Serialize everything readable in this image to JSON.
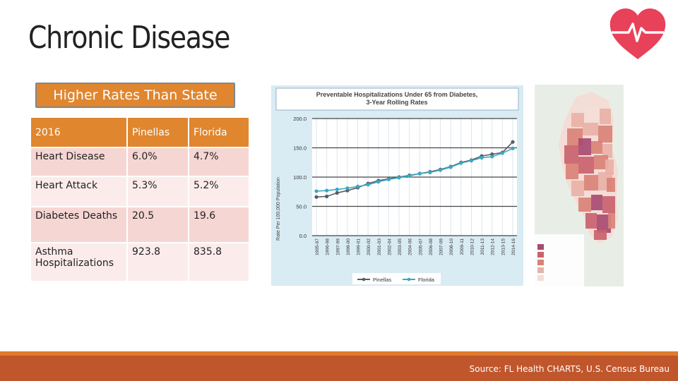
{
  "slide": {
    "title": "Chronic Disease",
    "subtitle_pill": "Higher Rates Than State",
    "source": "Source: FL Health CHARTS, U.S. Census Bureau"
  },
  "table": {
    "headers": [
      "2016",
      "Pinellas",
      "Florida"
    ],
    "rows": [
      [
        "Heart Disease",
        "6.0%",
        "4.7%"
      ],
      [
        "Heart Attack",
        "5.3%",
        "5.2%"
      ],
      [
        "Diabetes Deaths",
        "20.5",
        "19.6"
      ],
      [
        "Asthma Hospitalizations",
        "923.8",
        "835.8"
      ]
    ]
  },
  "chart_data": {
    "type": "line",
    "title": "Preventable Hospitalizations Under 65 from Diabetes, 3-Year Rolling Rates",
    "xlabel": "",
    "ylabel": "Rate Per 100,000 Population",
    "ylim": [
      0,
      200
    ],
    "yticks": [
      "0.0",
      "50.0",
      "100.0",
      "150.0",
      "200.0"
    ],
    "grid": true,
    "legend": "bottom",
    "categories": [
      "1995-97",
      "1996-98",
      "1997-99",
      "1998-00",
      "1999-01",
      "2000-02",
      "2001-03",
      "2002-04",
      "2003-05",
      "2004-06",
      "2005-07",
      "2006-08",
      "2007-09",
      "2008-10",
      "2009-11",
      "2010-12",
      "2011-13",
      "2012-14",
      "2013-15",
      "2014-16"
    ],
    "series": [
      {
        "name": "Pinellas",
        "color": "#5a5a66",
        "values": [
          66,
          67,
          73,
          77,
          82,
          89,
          94,
          97,
          100,
          103,
          106,
          109,
          113,
          118,
          125,
          129,
          136,
          139,
          142,
          160
        ]
      },
      {
        "name": "Florida",
        "color": "#39a9c4",
        "values": [
          76,
          77,
          79,
          81,
          84,
          87,
          92,
          96,
          99,
          102,
          106,
          108,
          112,
          117,
          124,
          128,
          133,
          135,
          141,
          149
        ]
      }
    ]
  },
  "map": {
    "colors": [
      "#f4ddd6",
      "#e8b1a7",
      "#d98277",
      "#c9626e",
      "#a84a73"
    ],
    "legend_colors": [
      "#a84a73",
      "#c9626e",
      "#d98277",
      "#e8b1a7",
      "#f4ddd6"
    ]
  }
}
